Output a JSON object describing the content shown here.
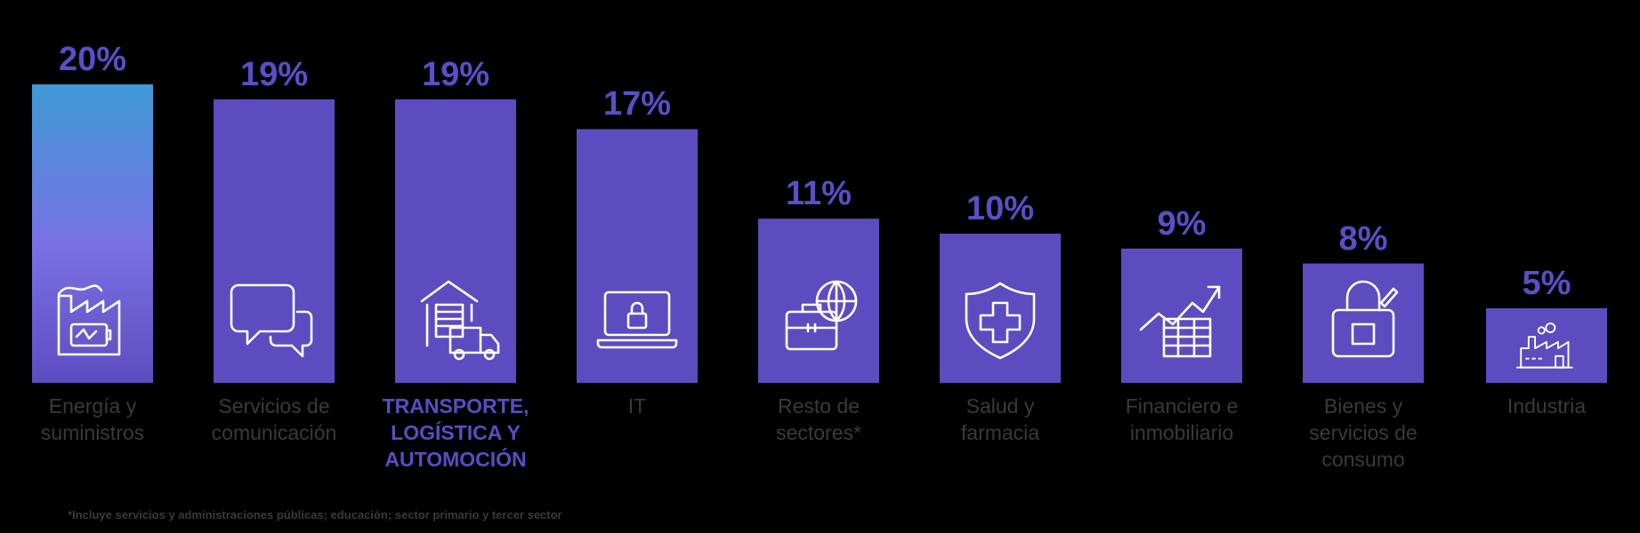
{
  "chart_data": {
    "type": "bar",
    "categories": [
      "Energía y\nsuministros",
      "Servicios de\ncomunicación",
      "TRANSPORTE,\nLOGÍSTICA Y\nAUTOMOCIÓN",
      "IT",
      "Resto de\nsectores*",
      "Salud y\nfarmacia",
      "Financiero e\ninmobiliario",
      "Bienes y\nservicios de\nconsumo",
      "Industria"
    ],
    "values": [
      20,
      19,
      19,
      17,
      11,
      10,
      9,
      8,
      5
    ],
    "value_labels": [
      "20%",
      "19%",
      "19%",
      "17%",
      "11%",
      "10%",
      "9%",
      "8%",
      "5%"
    ],
    "icons": [
      "factory-battery-icon",
      "chat-bubbles-icon",
      "warehouse-truck-icon",
      "laptop-lock-icon",
      "briefcase-globe-icon",
      "shield-cross-icon",
      "trend-chart-icon",
      "shopping-bag-icon",
      "industry-icon"
    ],
    "highlighted_category": "TRANSPORTE,\nLOGÍSTICA Y\nAUTOMOCIÓN",
    "ylim": [
      0,
      20
    ],
    "grid": false,
    "legend": "none",
    "footnote": "*Incluye servicios y administraciones públicas; educación; sector primario y tercer sector"
  },
  "colors": {
    "bar": "#5d4cbf",
    "bar_gradient_top": "#3f9ad6",
    "bar_gradient_mid": "#7a70e4",
    "value_text": "#5b4ec6",
    "label_text": "#3a3a3a",
    "highlight_text": "#5c4cc2",
    "icon_stroke": "#ffffff",
    "background": "#000000"
  }
}
